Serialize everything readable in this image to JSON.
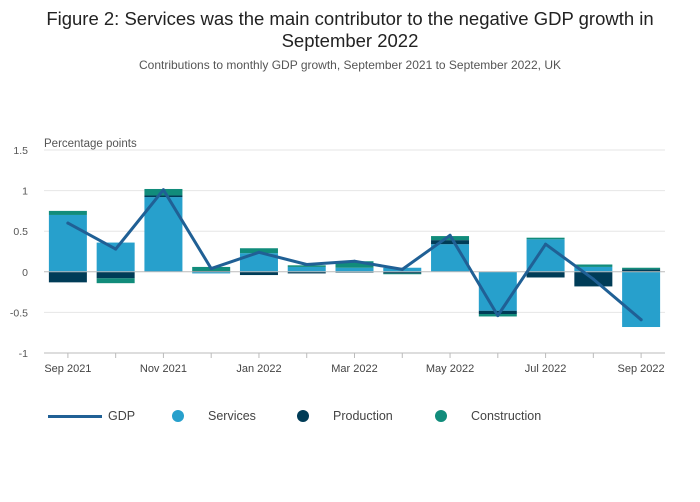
{
  "title": "Figure 2: Services was the main contributor to the negative GDP growth in September 2022",
  "subtitle": "Contributions to monthly GDP growth, September 2021 to September 2022, UK",
  "legend": {
    "gdp": "GDP",
    "services": "Services",
    "production": "Production",
    "construction": "Construction"
  },
  "colors": {
    "gdp": "#206095",
    "services": "#27a0cc",
    "production": "#003c57",
    "construction": "#118c7b",
    "grid": "#e6e6e6",
    "zero_line": "#bbbbbb"
  },
  "chart_data": {
    "type": "bar",
    "stacked": true,
    "categories": [
      "Sep 2021",
      "Oct 2021",
      "Nov 2021",
      "Dec 2021",
      "Jan 2022",
      "Feb 2022",
      "Mar 2022",
      "Apr 2022",
      "May 2022",
      "Jun 2022",
      "Jul 2022",
      "Aug 2022",
      "Sep 2022"
    ],
    "x_tick_labels": [
      "Sep 2021",
      "",
      "Nov 2021",
      "",
      "Jan 2022",
      "",
      "Mar 2022",
      "",
      "May 2022",
      "",
      "Jul 2022",
      "",
      "Sep 2022"
    ],
    "ylabel": "Percentage points",
    "ylim": [
      -1,
      1.5
    ],
    "yticks": [
      -1,
      -0.5,
      0,
      0.5,
      1,
      1.5
    ],
    "ytick_labels": [
      "-1",
      "-0.5",
      "0",
      "0.5",
      "1",
      "1.5"
    ],
    "grid": true,
    "legend_position": "bottom",
    "series": [
      {
        "name": "Services",
        "key": "services",
        "values": [
          0.7,
          0.36,
          0.92,
          -0.02,
          0.23,
          0.06,
          0.05,
          0.05,
          0.34,
          -0.48,
          0.4,
          0.06,
          -0.68
        ]
      },
      {
        "name": "Production",
        "key": "production",
        "values": [
          -0.13,
          -0.08,
          0.02,
          0.01,
          -0.04,
          -0.02,
          -0.01,
          -0.02,
          0.05,
          -0.04,
          -0.07,
          -0.18,
          0.03
        ]
      },
      {
        "name": "Construction",
        "key": "construction",
        "values": [
          0.05,
          -0.06,
          0.08,
          0.05,
          0.06,
          0.02,
          0.08,
          -0.01,
          0.05,
          -0.03,
          0.02,
          0.03,
          0.02
        ]
      }
    ],
    "line": {
      "name": "GDP",
      "key": "gdp",
      "values": [
        0.6,
        0.28,
        1.01,
        0.04,
        0.24,
        0.09,
        0.13,
        0.03,
        0.45,
        -0.54,
        0.34,
        -0.09,
        -0.59
      ]
    }
  }
}
